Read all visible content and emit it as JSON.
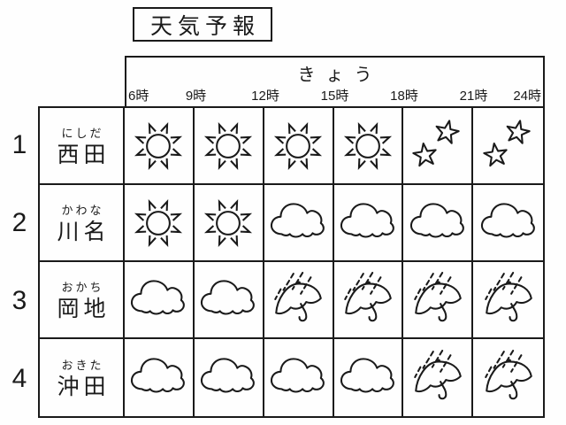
{
  "page": {
    "title": "天気予報",
    "background": "#ffffff",
    "line_color": "#1a1a1a"
  },
  "table": {
    "day_header": "きょう",
    "time_labels": [
      "6時",
      "9時",
      "12時",
      "15時",
      "18時",
      "21時",
      "24時"
    ],
    "rows": [
      {
        "number": "1",
        "furigana": "にしだ",
        "name": "西田",
        "weather": [
          "sunny",
          "sunny",
          "sunny",
          "sunny",
          "clear-night",
          "clear-night"
        ]
      },
      {
        "number": "2",
        "furigana": "かわな",
        "name": "川名",
        "weather": [
          "sunny",
          "sunny",
          "cloudy",
          "cloudy",
          "cloudy",
          "cloudy"
        ]
      },
      {
        "number": "3",
        "furigana": "おかち",
        "name": "岡地",
        "weather": [
          "cloudy",
          "cloudy",
          "rainy",
          "rainy",
          "rainy",
          "rainy"
        ]
      },
      {
        "number": "4",
        "furigana": "おきた",
        "name": "沖田",
        "weather": [
          "cloudy",
          "cloudy",
          "cloudy",
          "cloudy",
          "rainy",
          "rainy"
        ]
      }
    ],
    "weather_icons": {
      "sunny": "sun-icon",
      "cloudy": "cloud-icon",
      "rainy": "rain-umbrella-icon",
      "clear-night": "stars-icon"
    }
  }
}
